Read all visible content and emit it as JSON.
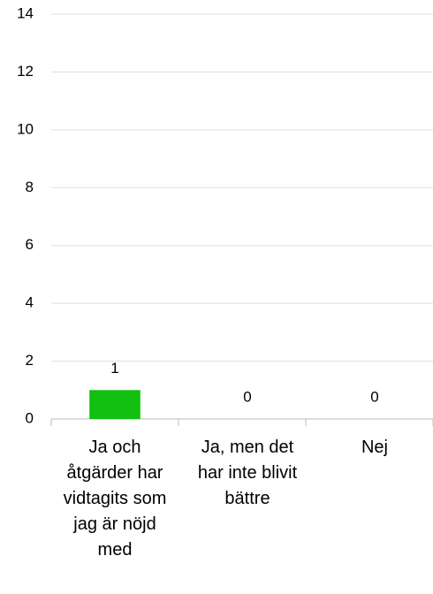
{
  "chart_data": {
    "type": "bar",
    "categories": [
      "Ja och åtgärder har vidtagits som jag är nöjd med",
      "Ja, men det har inte blivit bättre",
      "Nej"
    ],
    "values": [
      1,
      0,
      0
    ],
    "color": "#11c011",
    "ylim": [
      0,
      14
    ],
    "yticks": [
      0,
      2,
      4,
      6,
      8,
      10,
      12,
      14
    ],
    "grid": true
  }
}
